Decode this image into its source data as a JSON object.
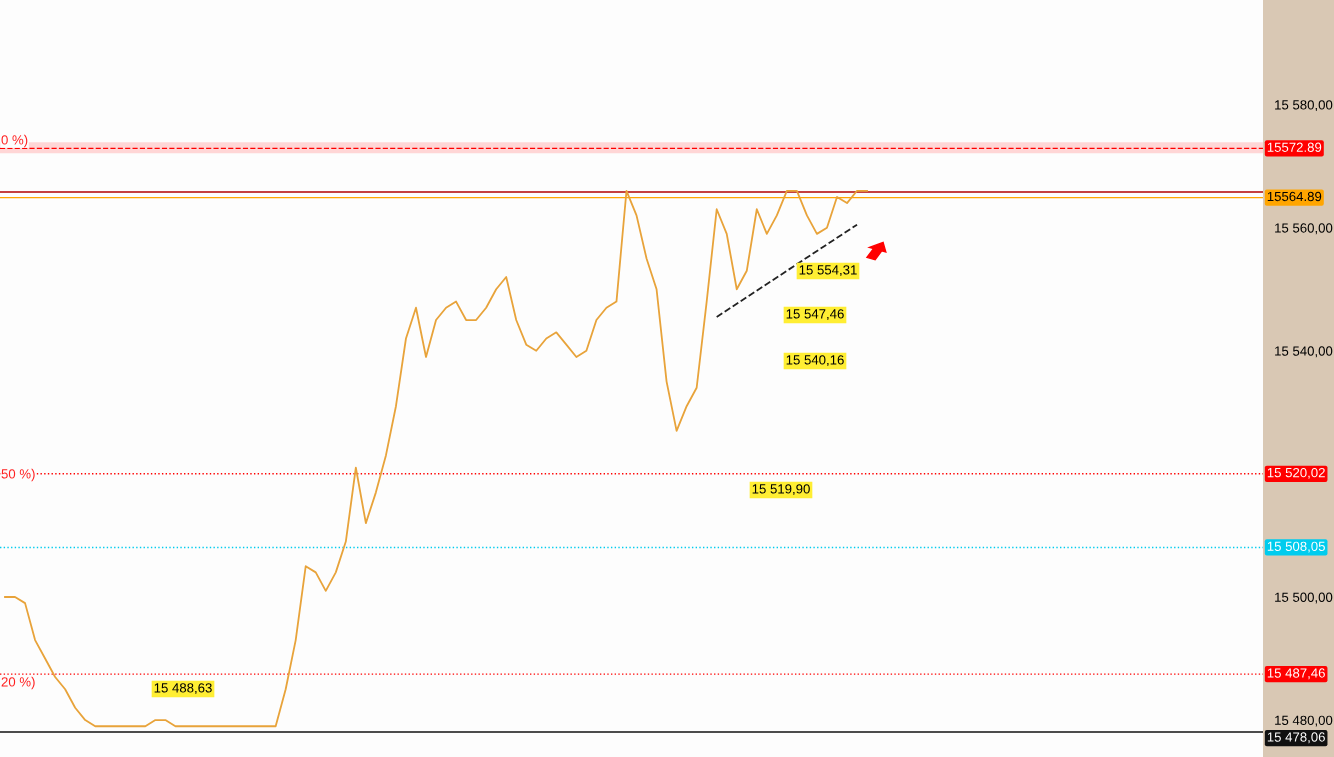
{
  "chart_data": {
    "type": "line",
    "categories": [
      null,
      null,
      null,
      null,
      null,
      null,
      null,
      null,
      null,
      null,
      null,
      null,
      null,
      null,
      null,
      null,
      null,
      null,
      null,
      null,
      null,
      null,
      null,
      null,
      null,
      null,
      null,
      null,
      null,
      null,
      null,
      null,
      null,
      null,
      null,
      null,
      null,
      null,
      null,
      null,
      null,
      null,
      null,
      null,
      null,
      null,
      null,
      null,
      null,
      null,
      null,
      null,
      null,
      null,
      null,
      null,
      null,
      null,
      null,
      null,
      null,
      null,
      null,
      null,
      null,
      null,
      null,
      null,
      null,
      null,
      null,
      null,
      null,
      null,
      null,
      null,
      null,
      null,
      null,
      null,
      null,
      null,
      null,
      null,
      null,
      null,
      null,
      null,
      null,
      null,
      null,
      null,
      null,
      null,
      null,
      null,
      null,
      null,
      null,
      null,
      null,
      null,
      null,
      null,
      null,
      null,
      null,
      null,
      null,
      null,
      null,
      null,
      null,
      null,
      null,
      null,
      null,
      null,
      null,
      null,
      null,
      null,
      null,
      null,
      null,
      null
    ],
    "series": [
      {
        "color": "#e8a33a",
        "values": [
          15500,
          15500,
          15499,
          15493,
          15490,
          15487,
          15485,
          15482,
          15480,
          15479,
          15479,
          15479,
          15479,
          15479,
          15479,
          15480,
          15480,
          15479,
          15479,
          15479,
          15479,
          15479,
          15479,
          15479,
          15479,
          15479,
          15479,
          15479,
          15485,
          15493,
          15505,
          15504,
          15501,
          15504,
          15509,
          15521,
          15512,
          15517,
          15523,
          15531,
          15542,
          15547,
          15539,
          15545,
          15547,
          15548,
          15545,
          15545,
          15547,
          15550,
          15552,
          15545,
          15541,
          15540,
          15542,
          15543,
          15541,
          15539,
          15540,
          15545,
          15547,
          15548,
          15566,
          15562,
          15555,
          15550,
          15535,
          15527,
          15531,
          15534,
          15548,
          15563,
          15559,
          15550,
          15553,
          15563,
          15559,
          15562,
          15566,
          15566,
          15562,
          15559,
          15560,
          15565,
          15564,
          15566,
          15566,
          null,
          null,
          null,
          null,
          null,
          null,
          null,
          null,
          null,
          null,
          null,
          null,
          null,
          null,
          null,
          null,
          null,
          null,
          null,
          null,
          null,
          null,
          null,
          null,
          null,
          null,
          null,
          null,
          null,
          null,
          null,
          null,
          null,
          null,
          null,
          null,
          null,
          null,
          null
        ]
      },
      {
        "type": "line",
        "values": [
          null,
          null,
          null,
          null,
          null,
          null,
          null,
          null,
          null,
          null,
          null,
          null,
          null,
          null,
          null,
          null,
          null,
          null,
          null,
          null,
          null,
          null,
          null,
          null,
          null,
          null,
          null,
          null,
          null,
          null,
          null,
          null,
          null,
          null,
          null,
          null,
          null,
          null,
          null,
          null,
          null,
          null,
          null,
          null,
          null,
          null,
          null,
          null,
          null,
          null,
          null,
          null,
          null,
          null,
          null,
          null,
          null,
          null,
          null,
          null,
          null,
          null,
          null,
          null,
          null,
          null,
          null,
          null,
          null,
          null,
          null,
          15545.5,
          null,
          null,
          null,
          null,
          null,
          null,
          null,
          null,
          null,
          null,
          null,
          null,
          null,
          15560.5,
          null,
          null,
          null,
          null,
          null,
          null,
          null,
          null,
          null,
          null,
          null,
          null,
          null,
          null,
          null,
          null,
          null,
          null,
          null,
          null,
          null,
          null,
          null,
          null,
          null,
          null,
          null,
          null,
          null,
          null,
          null,
          null,
          null,
          null,
          null,
          null,
          null,
          null,
          null,
          null
        ],
        "color": "#222222",
        "line_style": "dashed"
      }
    ],
    "ylim": [
      15474,
      15597
    ],
    "yticks": [
      {
        "value": 15480,
        "label": "15 480,00"
      },
      {
        "value": 15500,
        "label": "15 500,00"
      },
      {
        "value": 15520,
        "label": null
      },
      {
        "value": 15540,
        "label": "15 540,00"
      },
      {
        "value": 15560,
        "label": "15 560,00"
      },
      {
        "value": 15580,
        "label": "15 580,00"
      }
    ],
    "tick_labels": "y",
    "grid": false,
    "legend": false,
    "ref_lines": [
      {
        "axis": "y",
        "value": 15572.89,
        "label": "15572.89",
        "color": "#ff0000",
        "line_style": "dashed"
      },
      {
        "axis": "y",
        "value": 15565.8,
        "label": null,
        "color": "#b00000",
        "line_style": "solid"
      },
      {
        "axis": "y",
        "value": 15564.89,
        "label": "15564.89",
        "color": "#ffa500",
        "line_style": "solid"
      },
      {
        "axis": "y",
        "value": 15520.02,
        "label": "15 520,02",
        "color": "#ff0000",
        "line_style": "dotted"
      },
      {
        "axis": "y",
        "value": 15508.05,
        "label": "15 508,05",
        "color": "#00ccee",
        "line_style": "dotted"
      },
      {
        "axis": "y",
        "value": 15487.46,
        "label": "15 487,46",
        "color": "#ff0000",
        "line_style": "dotted"
      },
      {
        "axis": "y",
        "value": 15478.06,
        "label": "15 478,06",
        "color": "#111111",
        "line_style": "solid"
      }
    ],
    "bands": [
      {
        "axis": "y",
        "from": 15572.1,
        "to": 15573.9,
        "color": "#ffd6d6"
      }
    ],
    "annotations": [
      "15 554,31",
      "15 547,46",
      "15 540,16",
      "15 519,90",
      "15 488,63",
      "0 %)",
      "50 %)",
      "20 %)"
    ]
  }
}
